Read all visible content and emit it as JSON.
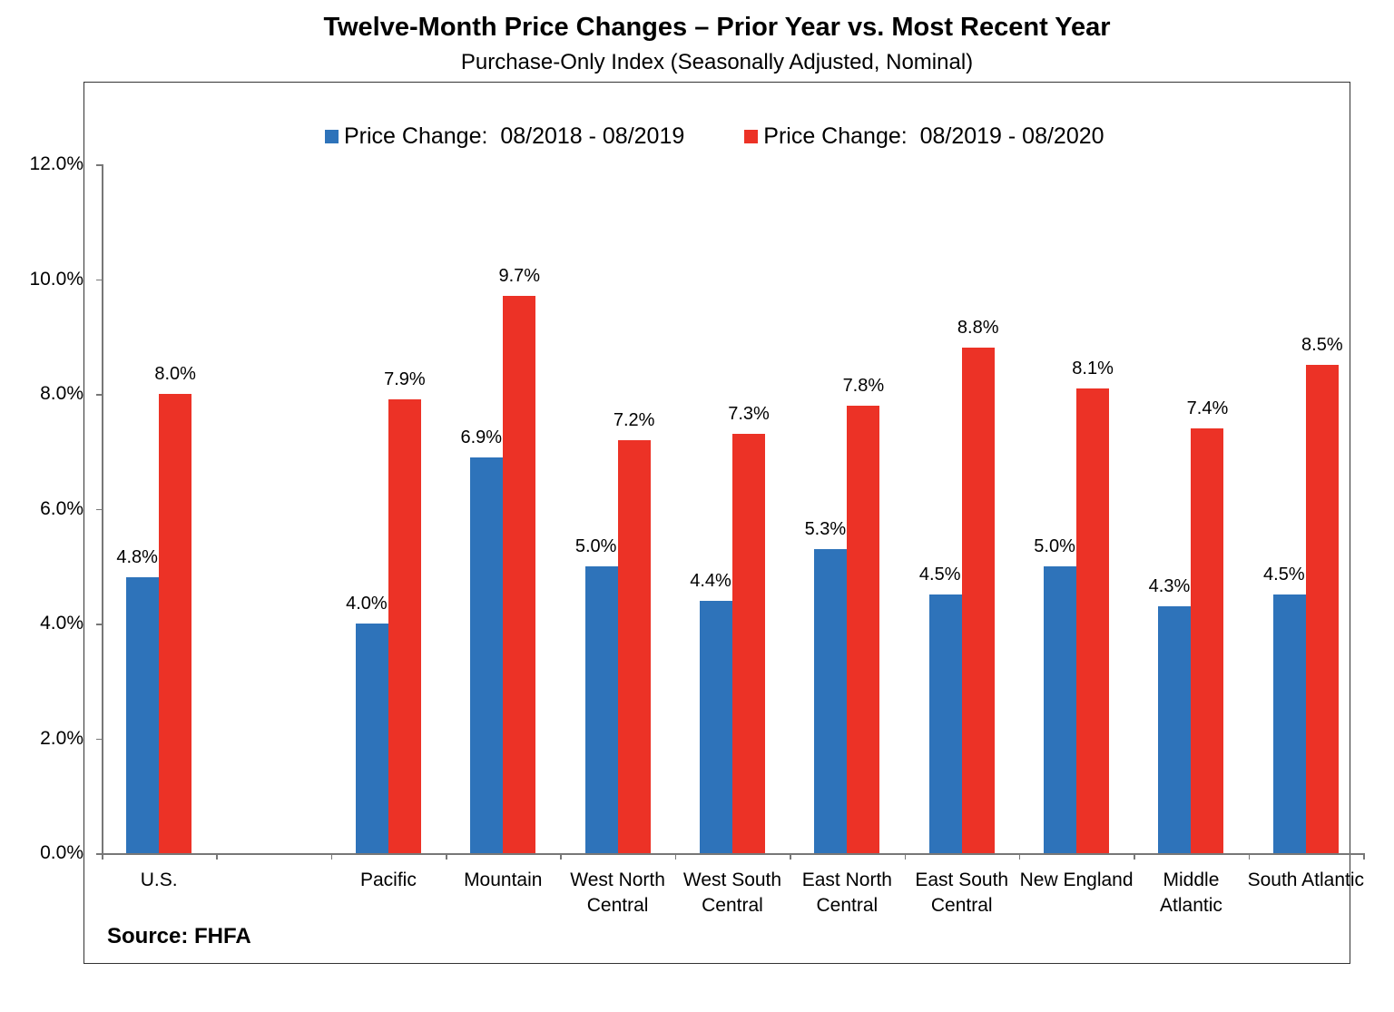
{
  "chart_data": {
    "type": "bar",
    "title": "Twelve-Month Price Changes – Prior Year vs. Most Recent Year",
    "subtitle": "Purchase-Only Index (Seasonally Adjusted, Nominal)",
    "categories": [
      "U.S.",
      "",
      "Pacific",
      "Mountain",
      "West North Central",
      "West South Central",
      "East North Central",
      "East South Central",
      "New England",
      "Middle Atlantic",
      "South Atlantic"
    ],
    "series": [
      {
        "name": "Price Change:  08/2018 - 08/2019",
        "color": "#2e73ba",
        "values": [
          4.8,
          null,
          4.0,
          6.9,
          5.0,
          4.4,
          5.3,
          4.5,
          5.0,
          4.3,
          4.5
        ]
      },
      {
        "name": "Price Change:  08/2019 - 08/2020",
        "color": "#ec3226",
        "values": [
          8.0,
          null,
          7.9,
          9.7,
          7.2,
          7.3,
          7.8,
          8.8,
          8.1,
          7.4,
          8.5
        ]
      }
    ],
    "ylim": [
      0,
      12
    ],
    "yticks": [
      "0.0%",
      "2.0%",
      "4.0%",
      "6.0%",
      "8.0%",
      "10.0%",
      "12.0%"
    ],
    "value_suffix": "%",
    "legend": "top",
    "grid": false,
    "source": "Source: FHFA"
  }
}
